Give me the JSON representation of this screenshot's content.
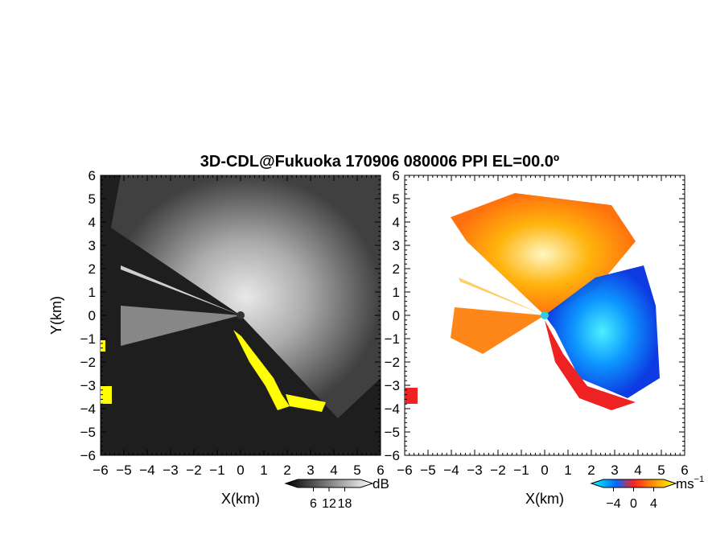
{
  "chart_data": [
    {
      "type": "heatmap",
      "title": "3D-CDL@Fukuoka 170906 080006 PPI EL=00.0º",
      "xlabel": "X(km)",
      "ylabel": "Y(km)",
      "xlim": [
        -6,
        6
      ],
      "ylim": [
        -6,
        6
      ],
      "xticks": [
        "−6",
        "−5",
        "−4",
        "−3",
        "−2",
        "−1",
        "0",
        "1",
        "2",
        "3",
        "4",
        "5",
        "6"
      ],
      "yticks": [
        "6",
        "5",
        "4",
        "3",
        "2",
        "1",
        "0",
        "−1",
        "−2",
        "−3",
        "−4",
        "−5",
        "−6"
      ],
      "colorbar": {
        "unit": "dB",
        "ticks": [
          "6",
          "12",
          "18"
        ],
        "values": [
          6,
          12,
          18
        ],
        "range": [
          0,
          24
        ],
        "colormap": "grayscale"
      },
      "colors": {
        "background": "#202020",
        "echo": "#e8e8e8",
        "flag": "#ffff00"
      }
    },
    {
      "type": "heatmap",
      "xlabel": "X(km)",
      "xlim": [
        -6,
        6
      ],
      "ylim": [
        -6,
        6
      ],
      "xticks": [
        "−6",
        "−5",
        "−4",
        "−3",
        "−2",
        "−1",
        "0",
        "1",
        "2",
        "3",
        "4",
        "5",
        "6"
      ],
      "yticks": [
        "6",
        "5",
        "4",
        "3",
        "2",
        "1",
        "0",
        "−1",
        "−2",
        "−3",
        "−4",
        "−5",
        "−6"
      ],
      "colorbar": {
        "unit": "ms",
        "unit_exp": "−1",
        "ticks": [
          "−4",
          "0",
          "4"
        ],
        "values": [
          -4,
          0,
          4
        ],
        "range": [
          -6,
          6
        ],
        "colormap": [
          "#00ffff",
          "#0066ff",
          "#ff2222",
          "#ffaa00",
          "#ffff00"
        ]
      },
      "colors": {
        "background": "#ffffff",
        "toward": "#0055ff",
        "away": "#ff8800"
      }
    }
  ]
}
